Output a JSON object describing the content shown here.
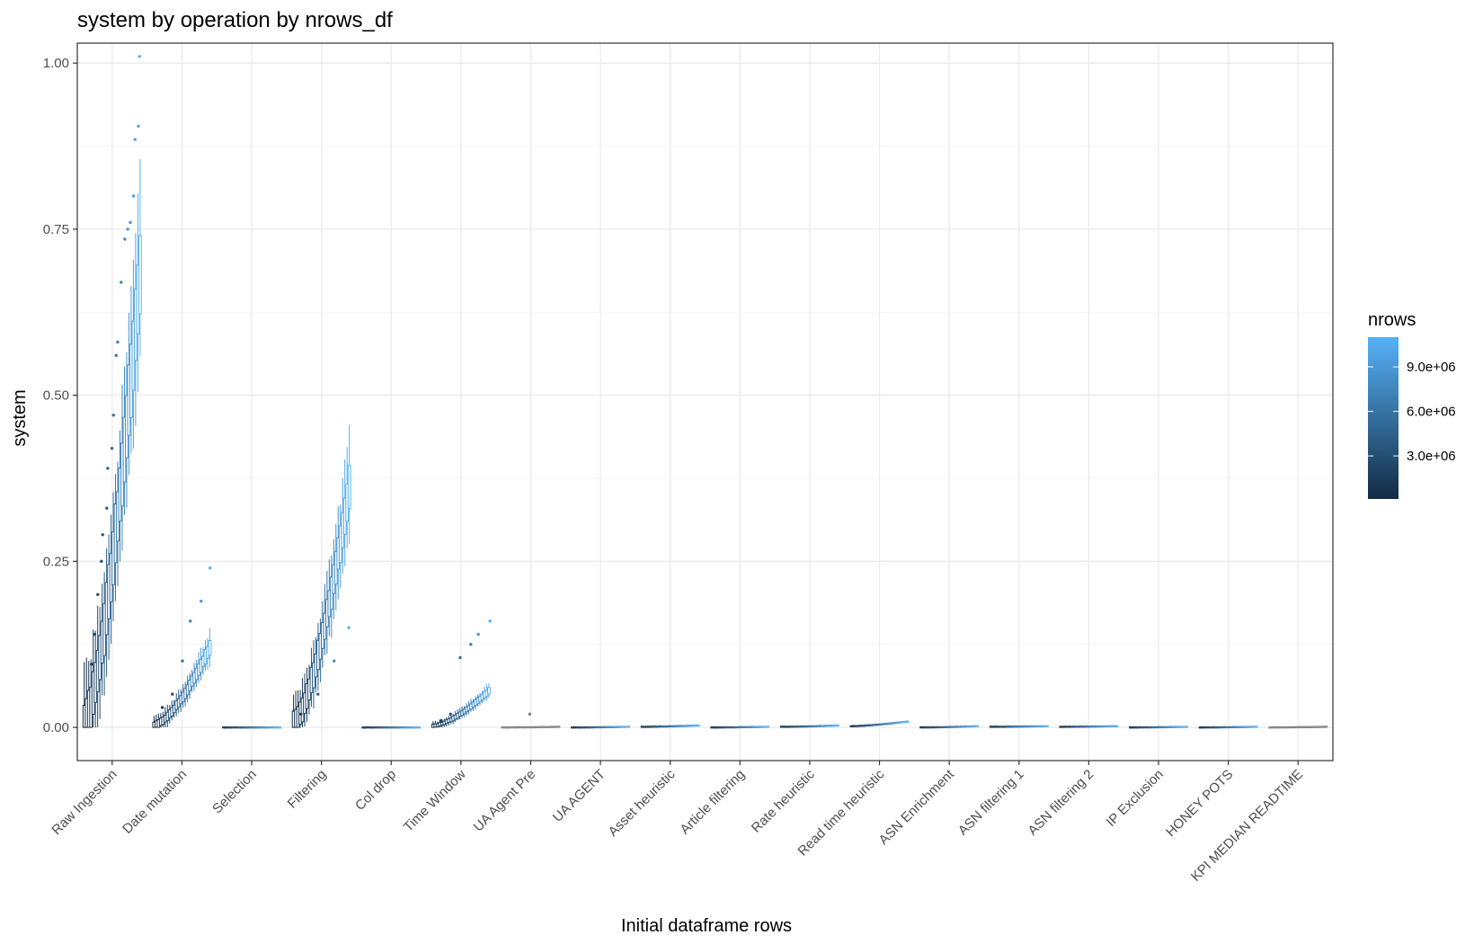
{
  "chart_data": {
    "type": "scatter",
    "title": "system by operation by nrows_df",
    "xlabel": "Initial dataframe rows",
    "ylabel": "system",
    "ylim": [
      -0.05,
      1.03
    ],
    "yticks": [
      0.0,
      0.25,
      0.5,
      0.75,
      1.0
    ],
    "ytick_labels": [
      "0.00",
      "0.25",
      "0.50",
      "0.75",
      "1.00"
    ],
    "grid": true,
    "categories": [
      "Raw Ingestion",
      "Date mutation",
      "Selection",
      "Filtering",
      "Col drop",
      "Time Window",
      "UA Agent Pre",
      "UA AGENT",
      "Asset heuristic",
      "Article filtering",
      "Rate heuristic",
      "Read time heuristic",
      "ASN Enrichment",
      "ASN filtering 1",
      "ASN filtering 2",
      "IP Exclusion",
      "HONEY POTS",
      "KPI MEDIAN READTIME"
    ],
    "groups": [
      {
        "name": "Raw Ingestion",
        "colored": true,
        "start": 0.005,
        "end": 0.68,
        "max": 1.01,
        "outliers": [
          0.095,
          0.14,
          0.2,
          0.25,
          0.29,
          0.33,
          0.39,
          0.42,
          0.47,
          0.56,
          0.58,
          0.67,
          0.735,
          0.75,
          0.76,
          0.8,
          0.885,
          0.905,
          1.01
        ]
      },
      {
        "name": "Date mutation",
        "colored": true,
        "start": 0.003,
        "end": 0.12,
        "max": 0.24,
        "outliers": [
          0.03,
          0.05,
          0.1,
          0.16,
          0.19,
          0.24
        ]
      },
      {
        "name": "Selection",
        "colored": true,
        "start": 0.0,
        "end": 0.0,
        "max": 0.0,
        "outliers": []
      },
      {
        "name": "Filtering",
        "colored": true,
        "start": 0.005,
        "end": 0.36,
        "max": 0.405,
        "outliers": [
          0.02,
          0.05,
          0.1,
          0.15
        ]
      },
      {
        "name": "Col drop",
        "colored": true,
        "start": 0.0,
        "end": 0.0,
        "max": 0.0,
        "outliers": []
      },
      {
        "name": "Time Window",
        "colored": true,
        "start": 0.002,
        "end": 0.055,
        "max": 0.165,
        "outliers": [
          0.01,
          0.02,
          0.105,
          0.125,
          0.14,
          0.16
        ]
      },
      {
        "name": "UA Agent Pre",
        "colored": false,
        "start": 0.0,
        "end": 0.001,
        "max": 0.02,
        "outliers": [
          0.02
        ]
      },
      {
        "name": "UA AGENT",
        "colored": true,
        "start": 0.0,
        "end": 0.001,
        "max": 0.002,
        "outliers": []
      },
      {
        "name": "Asset heuristic",
        "colored": true,
        "start": 0.001,
        "end": 0.003,
        "max": 0.004,
        "outliers": []
      },
      {
        "name": "Article filtering",
        "colored": true,
        "start": 0.0,
        "end": 0.001,
        "max": 0.001,
        "outliers": []
      },
      {
        "name": "Rate heuristic",
        "colored": true,
        "start": 0.001,
        "end": 0.003,
        "max": 0.005,
        "outliers": []
      },
      {
        "name": "Read time heuristic",
        "colored": true,
        "start": 0.002,
        "end": 0.009,
        "max": 0.011,
        "outliers": []
      },
      {
        "name": "ASN Enrichment",
        "colored": true,
        "start": 0.0,
        "end": 0.002,
        "max": 0.003,
        "outliers": []
      },
      {
        "name": "ASN filtering 1",
        "colored": true,
        "start": 0.001,
        "end": 0.002,
        "max": 0.003,
        "outliers": []
      },
      {
        "name": "ASN filtering 2",
        "colored": true,
        "start": 0.001,
        "end": 0.002,
        "max": 0.003,
        "outliers": []
      },
      {
        "name": "IP Exclusion",
        "colored": true,
        "start": 0.0,
        "end": 0.001,
        "max": 0.001,
        "outliers": []
      },
      {
        "name": "HONEY POTS",
        "colored": true,
        "start": 0.0,
        "end": 0.001,
        "max": 0.001,
        "outliers": []
      },
      {
        "name": "KPI MEDIAN READTIME",
        "colored": false,
        "start": 0.0,
        "end": 0.001,
        "max": 0.001,
        "outliers": []
      }
    ],
    "legend": {
      "title": "nrows",
      "position": "right",
      "breaks": [
        3000000,
        6000000,
        9000000
      ],
      "labels": [
        "3.0e+06",
        "6.0e+06",
        "9.0e+06"
      ],
      "range": [
        100000,
        11000000
      ],
      "color_low": "#132b43",
      "color_high": "#56b1f7"
    },
    "colors": {
      "panel_border": "#333333",
      "grid": "#ebebeb",
      "na_color": "#7f7f7f"
    }
  }
}
